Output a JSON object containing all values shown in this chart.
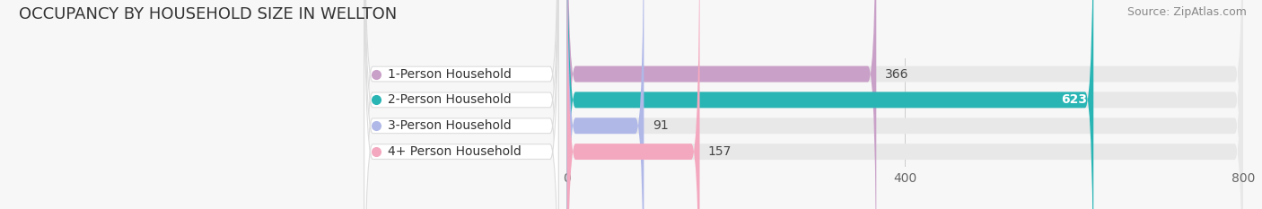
{
  "title": "OCCUPANCY BY HOUSEHOLD SIZE IN WELLTON",
  "source": "Source: ZipAtlas.com",
  "categories": [
    "1-Person Household",
    "2-Person Household",
    "3-Person Household",
    "4+ Person Household"
  ],
  "values": [
    366,
    623,
    91,
    157
  ],
  "bar_colors": [
    "#c9a0c8",
    "#2ab5b5",
    "#b0b8e8",
    "#f4a8bf"
  ],
  "xmin": -320,
  "xmax": 800,
  "xlim_display": [
    0,
    800
  ],
  "xticks": [
    0,
    400,
    800
  ],
  "bar_height": 0.62,
  "background_color": "#f7f7f7",
  "bar_track_color": "#e8e8e8",
  "label_box_color": "#ffffff",
  "title_fontsize": 13,
  "source_fontsize": 9,
  "tick_fontsize": 10,
  "category_fontsize": 10,
  "value_fontsize": 10
}
